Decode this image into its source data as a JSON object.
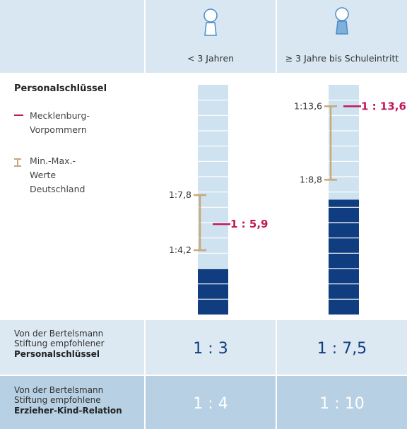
{
  "legend": {
    "title": "Personalschlüssel",
    "state": "Mecklenburg-Vorpommern",
    "range": "Min.-Max.-Werte Deutschland"
  },
  "ylim": [
    0,
    15
  ],
  "columns": [
    {
      "header": "< 3 Jahren",
      "max": {
        "value": 7.8,
        "label": "1:7,8"
      },
      "min": {
        "value": 4.2,
        "label": "1:4,2"
      },
      "state": {
        "value": 5.9,
        "label": "1 : 5,9"
      },
      "recommended_key": {
        "value": 3,
        "label": "1 : 3"
      },
      "recommended_relation": "1 : 4"
    },
    {
      "header": "≥ 3 Jahre bis Schuleintritt",
      "max": {
        "value": 13.6,
        "label": "1:13,6"
      },
      "min": {
        "value": 8.8,
        "label": "1:8,8"
      },
      "state": {
        "value": 13.6,
        "label": "1 : 13,6"
      },
      "recommended_key": {
        "value": 7.5,
        "label": "1 : 7,5"
      },
      "recommended_relation": "1 : 10"
    }
  ],
  "rows": [
    {
      "label": "Von der Bertelsmann Stiftung empfohlener",
      "label_bold": "Personalschlüssel"
    },
    {
      "label": "Von der Bertelsmann Stiftung empfohlene",
      "label_bold": "Erzieher-Kind-Relation"
    }
  ]
}
